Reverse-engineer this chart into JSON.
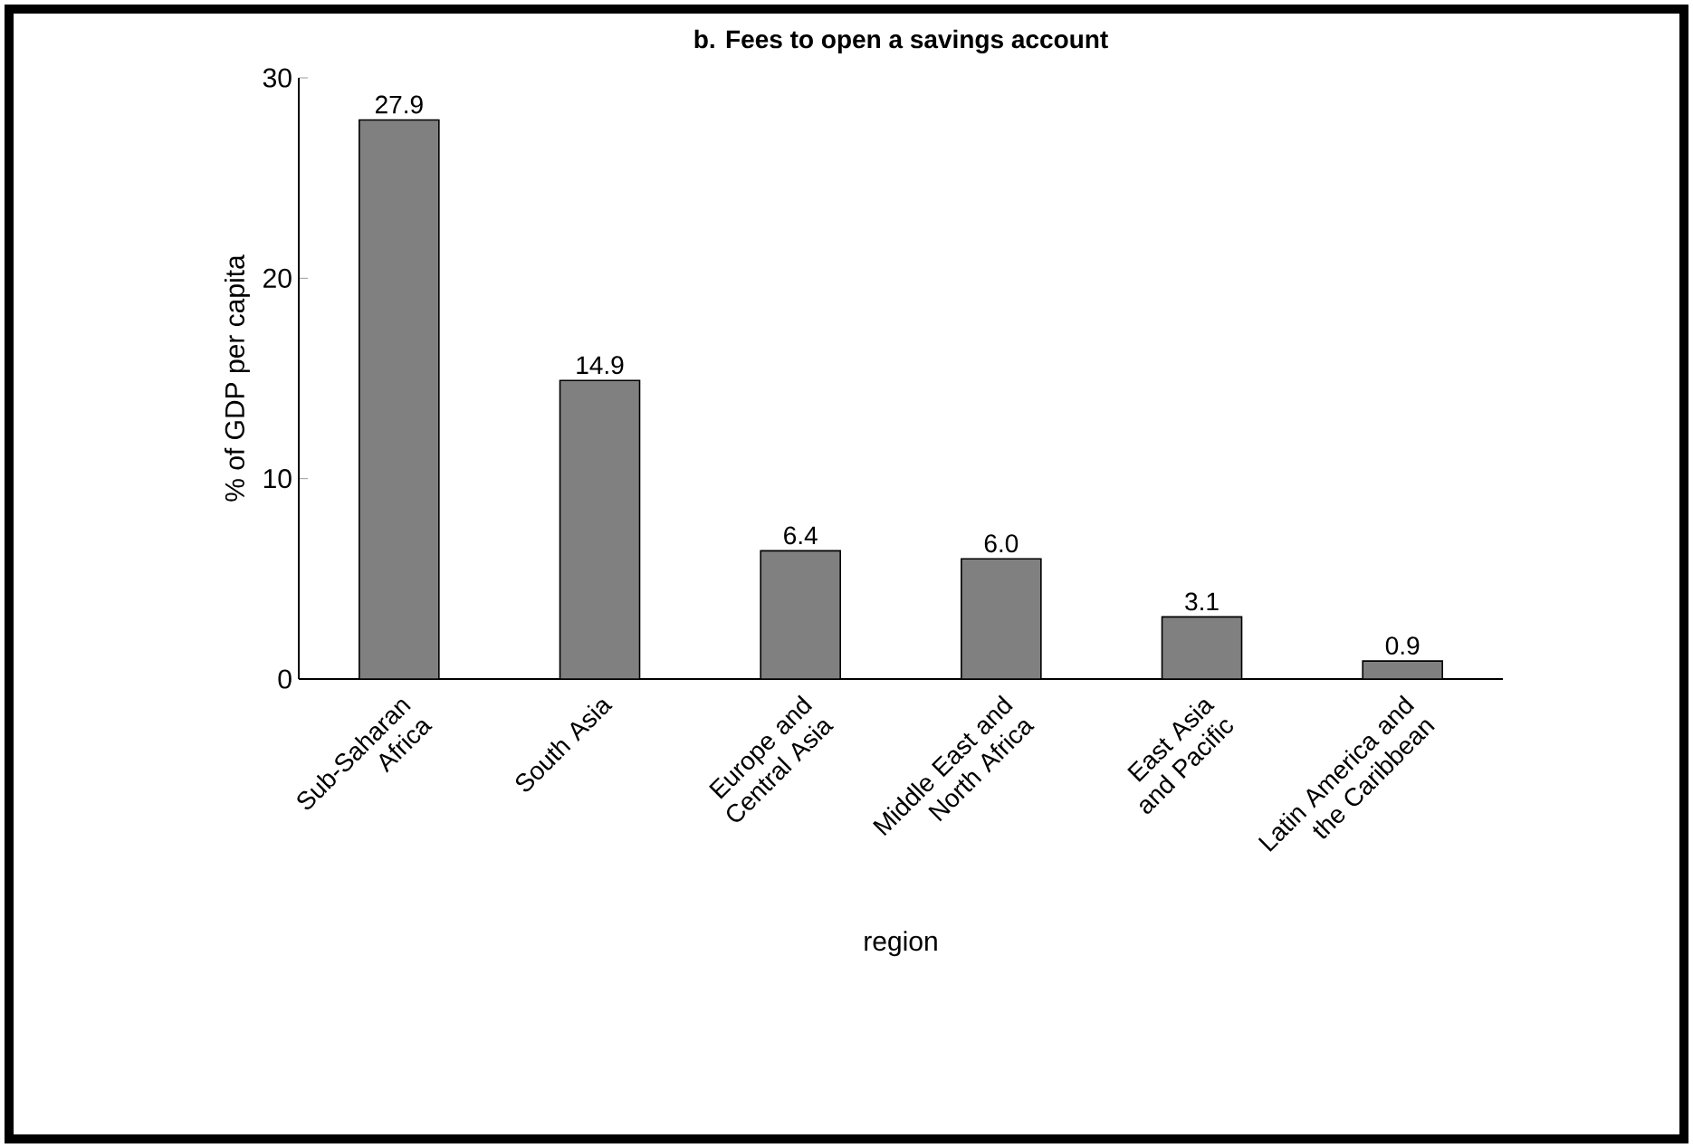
{
  "chart_data": {
    "type": "bar",
    "title": "b. Fees to open a savings account",
    "xlabel": "region",
    "ylabel": "% of GDP per capita",
    "categories": [
      "Sub-Saharan Africa",
      "South Asia",
      "Europe and Central Asia",
      "Middle East and North Africa",
      "East Asia and Pacific",
      "Latin America and the Caribbean"
    ],
    "values": [
      27.9,
      14.9,
      6.4,
      6.0,
      3.1,
      0.9
    ],
    "value_labels": [
      "27.9",
      "14.9",
      "6.4",
      "6.0",
      "3.1",
      "0.9"
    ],
    "color": "#808080",
    "ylim": [
      0,
      30
    ],
    "yticks": [
      0,
      10,
      20,
      30
    ]
  }
}
